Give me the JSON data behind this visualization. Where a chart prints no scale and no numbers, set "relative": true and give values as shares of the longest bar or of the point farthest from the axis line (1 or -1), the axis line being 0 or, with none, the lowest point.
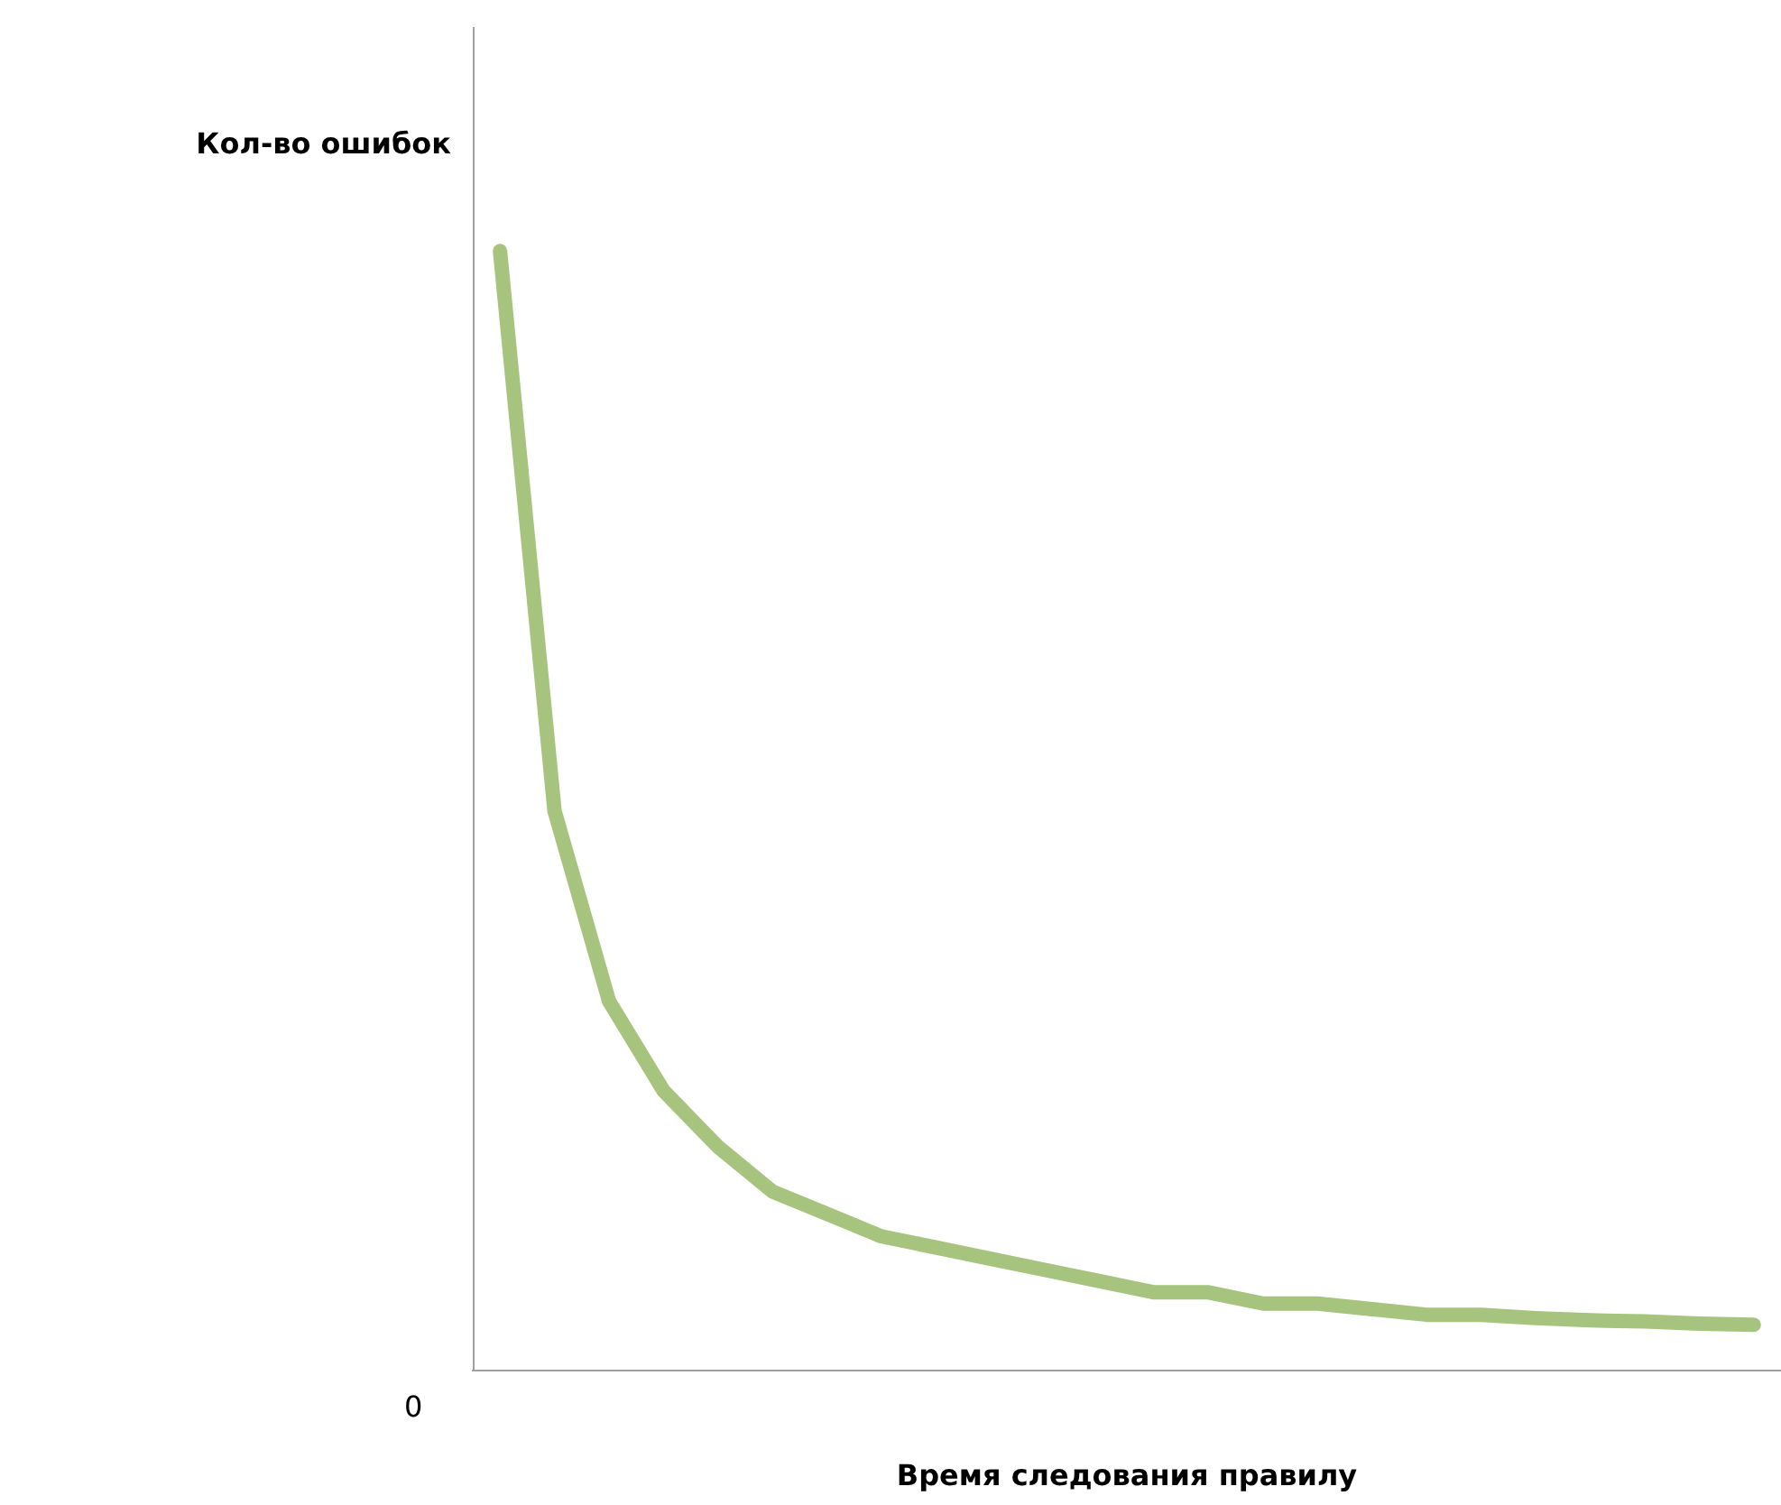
{
  "chart_data": {
    "type": "line",
    "relative": true,
    "ylabel": "Кол-во ошибок",
    "xlabel": "Время следования правилу",
    "annotations": [
      "0"
    ],
    "categories": [
      null,
      null,
      null,
      null,
      null,
      null,
      null,
      null,
      null,
      null,
      null,
      null,
      null,
      null,
      null,
      null,
      null,
      null,
      null,
      null,
      null,
      null,
      null,
      null
    ],
    "series": [
      {
        "color": "#a7c47f",
        "values": [
          1,
          0.5,
          0.33,
          0.25,
          0.2,
          0.16,
          0.14,
          0.12,
          0.11,
          0.1,
          0.09,
          0.08,
          0.07,
          0.07,
          0.06,
          0.06,
          0.055,
          0.05,
          0.05,
          0.047,
          0.045,
          0.044,
          0.042,
          0.041
        ]
      }
    ],
    "grid": false,
    "legend": false,
    "marker": "none"
  }
}
